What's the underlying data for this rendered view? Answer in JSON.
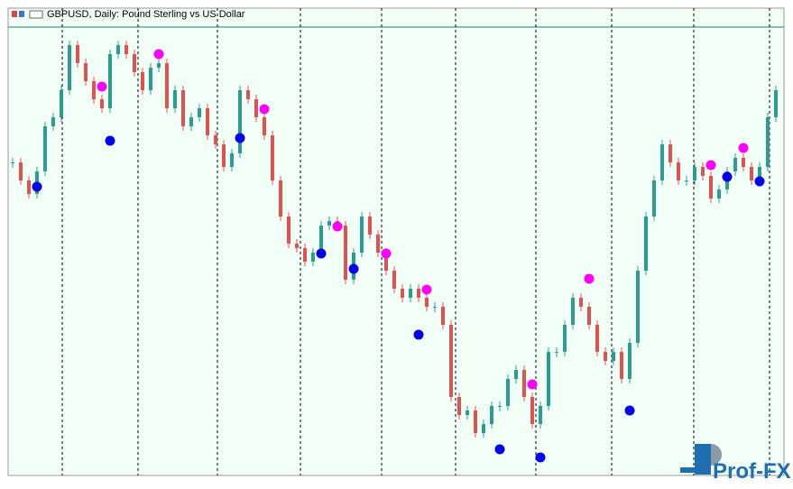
{
  "chart_data": {
    "type": "candlestick",
    "title": "GBPUSD, Daily:  Pound Sterling vs US Dollar",
    "logo": "Prof-FX",
    "ylim": [
      1.1755,
      1.33
    ],
    "up_color": "#2a9d8f",
    "down_color": "#e05252",
    "close": [
      1.279,
      1.273,
      1.2685,
      1.276,
      1.291,
      1.294,
      1.303,
      1.318,
      1.312,
      1.306,
      1.3,
      1.297,
      1.315,
      1.318,
      1.315,
      1.309,
      1.303,
      1.3105,
      1.312,
      1.297,
      1.303,
      1.291,
      1.294,
      1.297,
      1.288,
      1.285,
      1.2775,
      1.282,
      1.303,
      1.3,
      1.294,
      1.288,
      1.273,
      1.261,
      1.252,
      1.2505,
      1.246,
      1.249,
      1.258,
      1.2595,
      1.258,
      1.24,
      1.249,
      1.261,
      1.255,
      1.249,
      1.243,
      1.237,
      1.234,
      1.237,
      1.234,
      1.231,
      1.231,
      1.225,
      1.201,
      1.195,
      1.1965,
      1.189,
      1.192,
      1.198,
      1.198,
      1.207,
      1.21,
      1.201,
      1.192,
      1.198,
      1.216,
      1.216,
      1.225,
      1.234,
      1.231,
      1.225,
      1.216,
      1.213,
      1.216,
      1.207,
      1.219,
      1.243,
      1.261,
      1.273,
      1.285,
      1.279,
      1.273,
      1.273,
      1.2775,
      1.2745,
      1.267,
      1.27,
      1.276,
      1.2805,
      1.2775,
      1.273,
      1.2775,
      1.294,
      1.303
    ],
    "markers": [
      {
        "color": "#ff00ff",
        "values": [
          null,
          null,
          null,
          null,
          null,
          null,
          null,
          null,
          null,
          null,
          null,
          1.3042,
          null,
          null,
          null,
          null,
          null,
          null,
          1.315,
          null,
          null,
          null,
          null,
          null,
          null,
          null,
          null,
          null,
          null,
          null,
          null,
          1.2967,
          null,
          null,
          null,
          null,
          null,
          null,
          null,
          null,
          1.2577,
          null,
          null,
          null,
          null,
          null,
          1.2487,
          null,
          null,
          null,
          null,
          1.2367,
          null,
          null,
          null,
          null,
          null,
          null,
          null,
          null,
          null,
          null,
          null,
          null,
          1.2052,
          null,
          null,
          null,
          null,
          null,
          null,
          1.2403,
          null,
          null,
          null,
          null,
          null,
          null,
          null,
          null,
          null,
          null,
          null,
          null,
          null,
          null,
          1.2781,
          null,
          null,
          null,
          1.2838,
          null,
          null,
          null,
          null
        ]
      },
      {
        "color": "#0000ee",
        "values": [
          null,
          null,
          null,
          1.2709,
          null,
          null,
          null,
          null,
          null,
          null,
          null,
          null,
          1.2862,
          null,
          null,
          null,
          null,
          null,
          null,
          null,
          null,
          null,
          null,
          null,
          null,
          null,
          null,
          null,
          1.2871,
          null,
          null,
          null,
          null,
          null,
          null,
          null,
          null,
          null,
          1.2487,
          null,
          null,
          null,
          1.2436,
          null,
          null,
          null,
          null,
          null,
          null,
          null,
          1.2217,
          null,
          null,
          null,
          null,
          null,
          null,
          null,
          null,
          null,
          1.1836,
          null,
          null,
          null,
          null,
          1.1809,
          null,
          null,
          null,
          null,
          null,
          null,
          null,
          null,
          null,
          null,
          1.1965,
          null,
          null,
          null,
          null,
          null,
          null,
          null,
          null,
          null,
          null,
          null,
          1.2742,
          null,
          null,
          null,
          1.2727,
          null,
          null
        ]
      }
    ]
  }
}
